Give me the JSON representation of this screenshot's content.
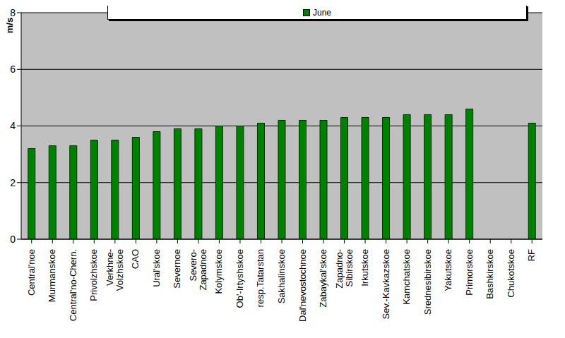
{
  "chart_data": {
    "type": "bar",
    "y_label": "m/s",
    "categories": [
      "Central'noe",
      "Murmanskoe",
      "Central'no-Chern.",
      "Privolzhskoe",
      "Verkhne-\nVolzhskoe",
      "CAO",
      "Ural'skoe",
      "Severnoe",
      "Severo-\nZapadnoe",
      "Kolymskoe",
      "Ob'-Irtyshskoe",
      "resp.Tatarstan",
      "Sakhalinskoe",
      "Dal'nevostochnoe",
      "Zabaykal'skoe",
      "Zapadno-\nSibirskoe",
      "Irkutskoe",
      "Sev.-Kavkazskoe",
      "Kamchatskoe",
      "Srednesibirskoe",
      "Yakutskoe",
      "Primorskoe",
      "Bashkirskoe",
      "Chukotskoe",
      "RF"
    ],
    "series": [
      {
        "name": "June",
        "color": "#008000",
        "values": [
          3.2,
          3.3,
          3.3,
          3.5,
          3.5,
          3.6,
          3.8,
          3.9,
          3.9,
          4.0,
          4.0,
          4.1,
          4.2,
          4.2,
          4.2,
          4.3,
          4.3,
          4.3,
          4.4,
          4.4,
          4.4,
          4.6,
          null,
          null,
          4.1
        ]
      }
    ],
    "ylim": [
      0,
      8
    ],
    "yticks": [
      0,
      2,
      4,
      6,
      8
    ],
    "grid": true,
    "legend": "top"
  }
}
